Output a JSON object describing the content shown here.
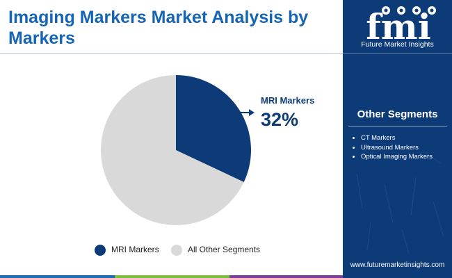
{
  "header": {
    "title": "Imaging Markers Market Analysis by Markers"
  },
  "brand": {
    "logo_text": "fmi",
    "name": "Future Market Insights",
    "url": "www.futuremarketinsights.com",
    "icons": [
      "flask-icon",
      "globe-icon",
      "person-icon",
      "chart-icon"
    ]
  },
  "other_segments": {
    "title": "Other Segments",
    "items": [
      "CT Markers",
      "Ultrasound Markers",
      "Optical Imaging Markers"
    ]
  },
  "callout": {
    "label": "MRI Markers",
    "value": "32%"
  },
  "colors": {
    "title": "#1565b4",
    "panel": "#0d3b78",
    "mri": "#0d3b78",
    "others": "#d9d9d9",
    "bar": [
      "#1f6ab5",
      "#7fbf3f",
      "#7b3f98"
    ]
  },
  "chart_data": {
    "type": "pie",
    "title": "",
    "slices": [
      {
        "label": "MRI Markers",
        "value": 32,
        "color": "#0d3b78"
      },
      {
        "label": "All Other Segments",
        "value": 68,
        "color": "#d9d9d9"
      }
    ],
    "start_angle_deg": 0,
    "direction": "clockwise",
    "legend_position": "bottom"
  }
}
